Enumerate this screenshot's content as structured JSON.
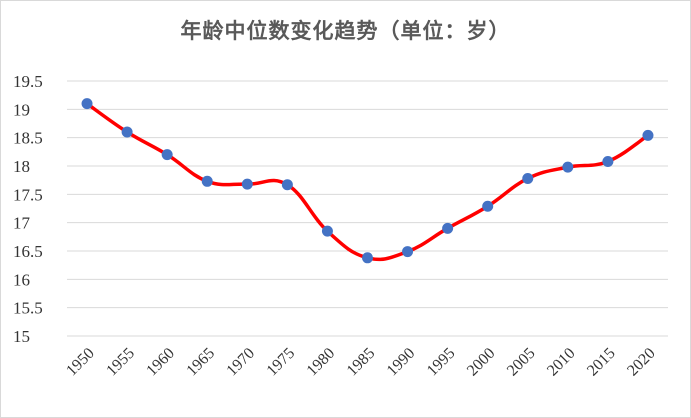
{
  "chart_data": {
    "type": "line",
    "title": "年龄中位数变化趋势（单位：岁）",
    "xlabel": "",
    "ylabel": "",
    "x": [
      "1950",
      "1955",
      "1960",
      "1965",
      "1970",
      "1975",
      "1980",
      "1985",
      "1990",
      "1995",
      "2000",
      "2005",
      "2010",
      "2015",
      "2020"
    ],
    "values": [
      19.1,
      18.6,
      18.2,
      17.73,
      17.68,
      17.67,
      16.85,
      16.38,
      16.49,
      16.9,
      17.29,
      17.78,
      17.98,
      18.08,
      18.54
    ],
    "ylim": [
      15,
      19.5
    ],
    "yticks": [
      "15",
      "15.5",
      "16",
      "16.5",
      "17",
      "17.5",
      "18",
      "18.5",
      "19",
      "19.5"
    ],
    "grid": true,
    "smooth": true,
    "line_color": "#ff0000",
    "marker_color": "#4472c4",
    "grid_color": "#d9d9d9"
  }
}
